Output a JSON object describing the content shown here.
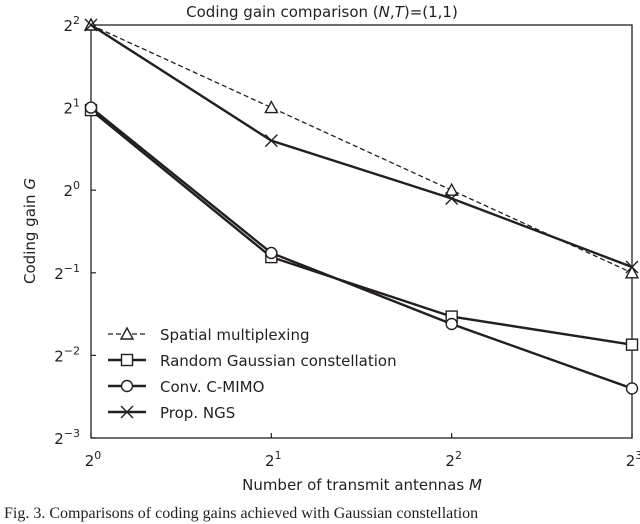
{
  "chart_data": {
    "type": "line",
    "title": "Coding gain comparison (N,T)=(1,1)",
    "title_parts": {
      "prefix": "Coding gain comparison (",
      "n": "N",
      "sep": ",",
      "t": "T",
      "suffix": ")=(1,1)"
    },
    "xlabel": "Number of transmit antennas",
    "xlabel_var": "M",
    "ylabel": "Coding gain",
    "ylabel_var": "G",
    "x_scale": "log2",
    "y_scale": "log2",
    "x_exponents": [
      0,
      1,
      2,
      3
    ],
    "x_ticks": [
      {
        "base": "2",
        "exp": "0"
      },
      {
        "base": "2",
        "exp": "1"
      },
      {
        "base": "2",
        "exp": "2"
      },
      {
        "base": "2",
        "exp": "3"
      }
    ],
    "y_ticks": [
      {
        "base": "2",
        "exp": "2",
        "v": 2
      },
      {
        "base": "2",
        "exp": "1",
        "v": 1
      },
      {
        "base": "2",
        "exp": "0",
        "v": 0
      },
      {
        "base": "2",
        "exp": "−1",
        "v": -1
      },
      {
        "base": "2",
        "exp": "−2",
        "v": -2
      },
      {
        "base": "2",
        "exp": "−3",
        "v": -3
      }
    ],
    "xlim_log2": [
      0,
      3
    ],
    "ylim_log2": [
      -3,
      2
    ],
    "grid": false,
    "legend_placement": "lower-left",
    "x": [
      1,
      2,
      4,
      8
    ],
    "series": [
      {
        "name": "Spatial multiplexing",
        "marker": "triangle",
        "dash": true,
        "log2_values": [
          2,
          1,
          0,
          -1
        ]
      },
      {
        "name": "Random Gaussian constellation",
        "marker": "square",
        "dash": false,
        "log2_values": [
          0.97,
          -0.81,
          -1.53,
          -1.87
        ]
      },
      {
        "name": "Conv. C-MIMO",
        "marker": "circle",
        "dash": false,
        "log2_values": [
          1,
          -0.76,
          -1.62,
          -2.4
        ]
      },
      {
        "name": "Prop. NGS",
        "marker": "x",
        "dash": false,
        "log2_values": [
          2,
          0.6,
          -0.1,
          -0.93
        ]
      }
    ],
    "color": "#231f20"
  },
  "caption": "Fig. 3.    Comparisons of coding gains achieved with Gaussian constellation"
}
